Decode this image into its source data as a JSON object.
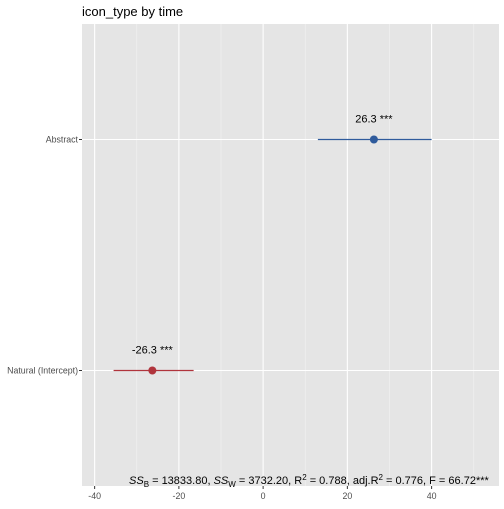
{
  "chart_data": {
    "type": "coefficient-plot",
    "title": "icon_type by time",
    "xlim": [
      -43,
      56
    ],
    "xticks": [
      -40,
      -20,
      0,
      20,
      40
    ],
    "categories": [
      "Abstract",
      "Natural (Intercept)"
    ],
    "points": [
      {
        "category": "Abstract",
        "estimate": 26.3,
        "ci_low": 13,
        "ci_high": 40,
        "label": "26.3 ***",
        "color": "#2f5b9c"
      },
      {
        "category": "Natural (Intercept)",
        "estimate": -26.3,
        "ci_low": -35.5,
        "ci_high": -16.5,
        "label": "-26.3 ***",
        "color": "#b0343c"
      }
    ],
    "grid": true,
    "panel_color": "#e5e5e5"
  },
  "stats": {
    "ssb_label": "SS",
    "ssb_sub": "B",
    "ssb_value": " = 13833.80, ",
    "ssw_label": "SS",
    "ssw_sub": "W",
    "ssw_value": " = 3732.20, ",
    "r2_label": "R",
    "r2_sup": "2",
    "r2_value": " = 0.788, ",
    "adjr2_label": "adj.R",
    "adjr2_sup": "2",
    "adjr2_value": " = 0.776, ",
    "f_text": "F = 66.72***"
  }
}
